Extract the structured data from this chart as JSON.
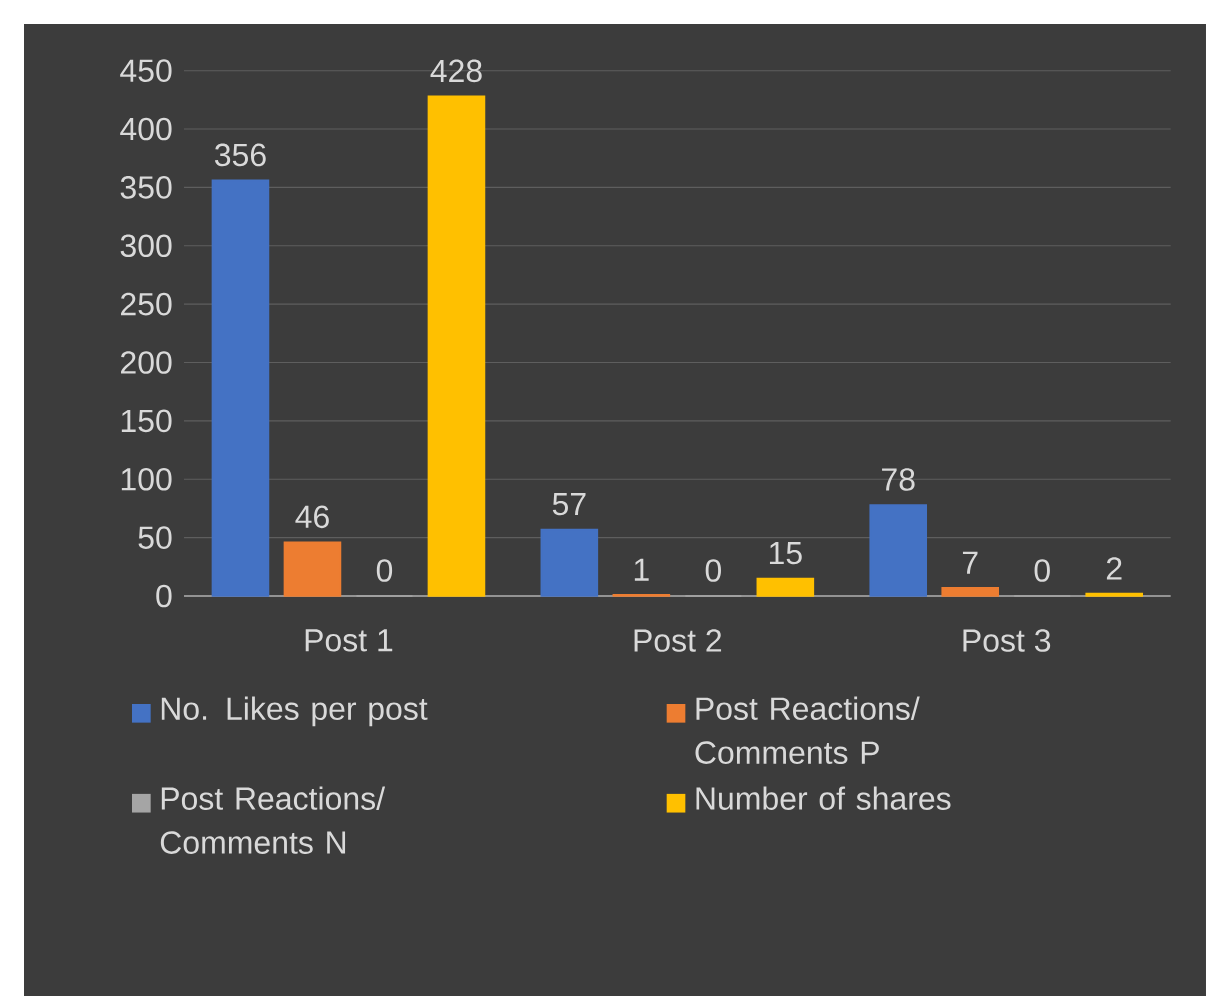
{
  "chart_data": {
    "type": "bar",
    "categories": [
      "Post 1",
      "Post 2",
      "Post 3"
    ],
    "series": [
      {
        "name": "No. Likes per post",
        "color": "#4472c4",
        "values": [
          356,
          57,
          78
        ]
      },
      {
        "name": "Post Reactions/ Comments P",
        "color": "#ed7d31",
        "values": [
          46,
          1,
          7
        ]
      },
      {
        "name": "Post Reactions/ Comments N",
        "color": "#a5a5a5",
        "values": [
          0,
          0,
          0
        ]
      },
      {
        "name": "Number of shares",
        "color": "#ffc000",
        "values": [
          428,
          15,
          2
        ]
      }
    ],
    "ylim": [
      0,
      450
    ],
    "yticks": [
      0,
      50,
      100,
      150,
      200,
      250,
      300,
      350,
      400,
      450
    ],
    "grid": "y",
    "legend": "bottom",
    "data_labels": true
  }
}
